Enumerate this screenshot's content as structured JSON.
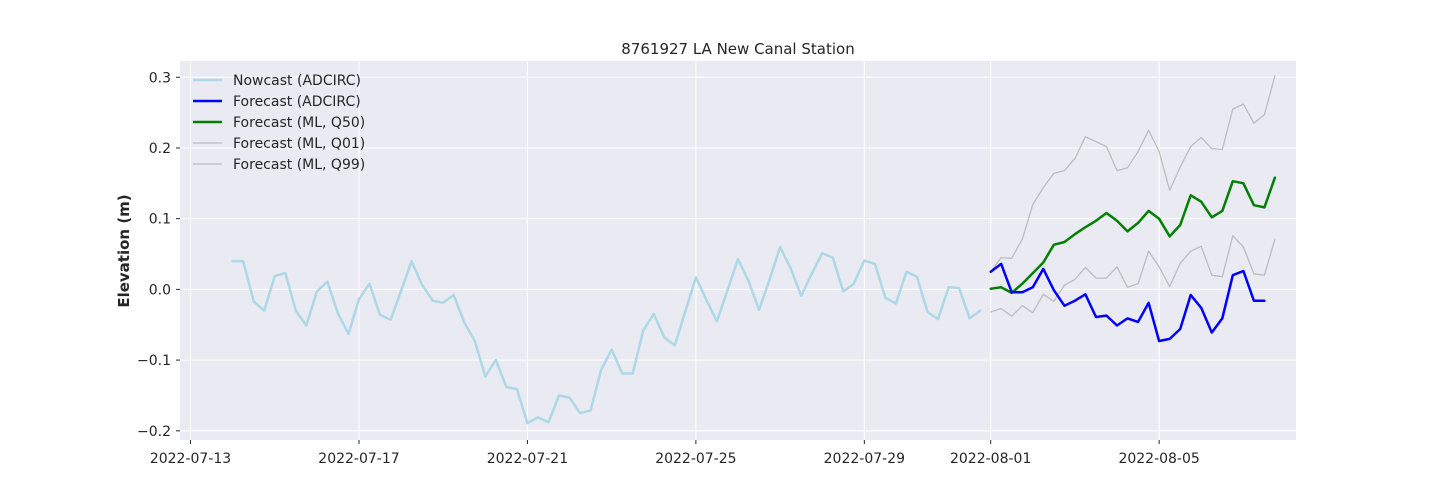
{
  "chart_data": {
    "type": "line",
    "title": "8761927 LA New Canal Station",
    "xlabel": "",
    "ylabel": "Elevation (m)",
    "x_type": "date",
    "xlim": [
      "2022-07-12T18:00",
      "2022-08-08T06:00"
    ],
    "ylim": [
      -0.213,
      0.323
    ],
    "grid": true,
    "legend_position": "upper-left",
    "x_ticks": [
      "2022-07-13",
      "2022-07-17",
      "2022-07-21",
      "2022-07-25",
      "2022-07-29",
      "2022-08-01",
      "2022-08-05"
    ],
    "y_ticks": [
      -0.2,
      -0.1,
      0.0,
      0.1,
      0.2,
      0.3
    ],
    "y_tick_labels": [
      "−0.2",
      "−0.1",
      "0.0",
      "0.1",
      "0.2",
      "0.3"
    ],
    "series": [
      {
        "name": "Nowcast (ADCIRC)",
        "color": "#add8e6",
        "line_width": 2.5,
        "start": "2022-07-14T00:00",
        "step_hours": 6,
        "values": [
          0.04,
          0.04,
          -0.017,
          -0.03,
          0.019,
          0.023,
          -0.03,
          -0.051,
          -0.003,
          0.011,
          -0.034,
          -0.063,
          -0.014,
          0.008,
          -0.036,
          -0.043,
          -0.002,
          0.04,
          0.006,
          -0.016,
          -0.019,
          -0.008,
          -0.047,
          -0.073,
          -0.123,
          -0.1,
          -0.138,
          -0.141,
          -0.189,
          -0.181,
          -0.188,
          -0.15,
          -0.153,
          -0.175,
          -0.171,
          -0.114,
          -0.085,
          -0.119,
          -0.119,
          -0.058,
          -0.035,
          -0.068,
          -0.079,
          -0.031,
          0.017,
          -0.015,
          -0.045,
          -0.001,
          0.043,
          0.012,
          -0.029,
          0.014,
          0.06,
          0.03,
          -0.009,
          0.022,
          0.051,
          0.045,
          -0.003,
          0.008,
          0.041,
          0.036,
          -0.012,
          -0.02,
          0.025,
          0.018,
          -0.032,
          -0.042,
          0.003,
          0.002,
          -0.041,
          -0.03
        ]
      },
      {
        "name": "Forecast (ADCIRC)",
        "color": "#0000ff",
        "line_width": 2.5,
        "start": "2022-08-01T00:00",
        "step_hours": 6,
        "values": [
          0.025,
          0.036,
          -0.004,
          -0.004,
          0.003,
          0.029,
          -0.001,
          -0.023,
          -0.016,
          -0.007,
          -0.039,
          -0.037,
          -0.051,
          -0.041,
          -0.046,
          -0.019,
          -0.073,
          -0.07,
          -0.056,
          -0.008,
          -0.026,
          -0.061,
          -0.041,
          0.02,
          0.026,
          -0.016,
          -0.016
        ]
      },
      {
        "name": "Forecast (ML, Q50)",
        "color": "#008000",
        "line_width": 2.5,
        "start": "2022-08-01T00:00",
        "step_hours": 6,
        "values": [
          0.001,
          0.003,
          -0.005,
          0.008,
          0.023,
          0.038,
          0.063,
          0.067,
          0.078,
          0.088,
          0.097,
          0.108,
          0.097,
          0.082,
          0.094,
          0.111,
          0.1,
          0.075,
          0.091,
          0.133,
          0.124,
          0.102,
          0.111,
          0.153,
          0.15,
          0.119,
          0.116,
          0.158
        ]
      },
      {
        "name": "Forecast (ML, Q01)",
        "color": "#bdbdbd",
        "line_width": 1.3,
        "start": "2022-08-01T00:00",
        "step_hours": 6,
        "values": [
          -0.032,
          -0.027,
          -0.038,
          -0.023,
          -0.033,
          -0.007,
          -0.017,
          0.006,
          0.014,
          0.031,
          0.016,
          0.016,
          0.032,
          0.003,
          0.008,
          0.054,
          0.032,
          0.004,
          0.037,
          0.054,
          0.061,
          0.02,
          0.018,
          0.076,
          0.06,
          0.022,
          0.02,
          0.071
        ]
      },
      {
        "name": "Forecast (ML, Q99)",
        "color": "#bdbdbd",
        "line_width": 1.3,
        "start": "2022-08-01T00:00",
        "step_hours": 6,
        "values": [
          0.025,
          0.045,
          0.044,
          0.071,
          0.12,
          0.144,
          0.164,
          0.168,
          0.185,
          0.216,
          0.209,
          0.202,
          0.168,
          0.172,
          0.195,
          0.225,
          0.195,
          0.14,
          0.173,
          0.202,
          0.215,
          0.199,
          0.198,
          0.255,
          0.262,
          0.235,
          0.247,
          0.302
        ]
      }
    ]
  }
}
